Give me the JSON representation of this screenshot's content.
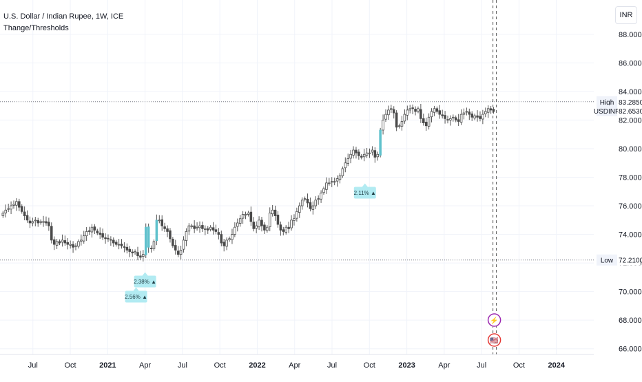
{
  "header": {
    "symbol_title": "U.S. Dollar / Indian Rupee, 1W, ICE",
    "indicator_title": "Thange/Thresholds"
  },
  "currency_button": "INR",
  "price_scale": {
    "ticks": [
      "66.0000",
      "68.0000",
      "70.0000",
      "72.0000",
      "74.0000",
      "76.0000",
      "78.0000",
      "80.0000",
      "82.0000",
      "84.0000",
      "86.0000",
      "88.0000"
    ]
  },
  "time_scale": {
    "ticks": [
      {
        "label": "Jul",
        "t": 2020.5,
        "bold": false
      },
      {
        "label": "Oct",
        "t": 2020.75,
        "bold": false
      },
      {
        "label": "2021",
        "t": 2021.0,
        "bold": true
      },
      {
        "label": "Apr",
        "t": 2021.25,
        "bold": false
      },
      {
        "label": "Jul",
        "t": 2021.5,
        "bold": false
      },
      {
        "label": "Oct",
        "t": 2021.75,
        "bold": false
      },
      {
        "label": "2022",
        "t": 2022.0,
        "bold": true
      },
      {
        "label": "Apr",
        "t": 2022.25,
        "bold": false
      },
      {
        "label": "Jul",
        "t": 2022.5,
        "bold": false
      },
      {
        "label": "Oct",
        "t": 2022.75,
        "bold": false
      },
      {
        "label": "2023",
        "t": 2023.0,
        "bold": true
      },
      {
        "label": "Apr",
        "t": 2023.25,
        "bold": false
      },
      {
        "label": "Jul",
        "t": 2023.5,
        "bold": false
      },
      {
        "label": "Oct",
        "t": 2023.75,
        "bold": false
      },
      {
        "label": "2024",
        "t": 2024.0,
        "bold": true
      }
    ]
  },
  "markers": {
    "high": {
      "label": "High",
      "value": "83.2850",
      "price": 83.285
    },
    "last": {
      "label": "USDINR",
      "value": "82.6530",
      "price": 82.653
    },
    "low": {
      "label": "Low",
      "value": "72.2100",
      "price": 72.21
    }
  },
  "annotations": [
    {
      "text": "2.56% ▲",
      "t": 2021.19
    },
    {
      "text": "2.38% ▲",
      "t": 2021.25
    },
    {
      "text": "2.11% ▲",
      "t": 2022.72
    }
  ],
  "event_icons": [
    {
      "name": "lightning-event-icon",
      "glyph": "⚡"
    },
    {
      "name": "us-flag-event-icon",
      "glyph": "🇺🇸"
    }
  ],
  "colors": {
    "up_body": "#ffffff",
    "down_body": "#4a4a4a",
    "wick": "#555555",
    "highlight": "#5fc1cc",
    "annotation_bg": "#b2ebf2",
    "grid": "#f0f3fa",
    "axis_text": "#131722",
    "event_purple": "#9c27b0",
    "event_red": "#e53935"
  },
  "chart_data": {
    "type": "candlestick",
    "title": "U.S. Dollar / Indian Rupee, 1W, ICE",
    "xlabel": "",
    "ylabel": "",
    "ylim": [
      65.6,
      90.4
    ],
    "xlim": [
      2020.28,
      2024.25
    ],
    "interval": "1W",
    "series": [
      {
        "name": "USDINR",
        "closes": [
          75.5,
          75.7,
          75.8,
          76.0,
          76.1,
          76.3,
          75.9,
          75.6,
          75.3,
          75.0,
          74.8,
          74.9,
          75.0,
          74.8,
          74.9,
          74.9,
          74.8,
          74.6,
          73.6,
          73.3,
          73.5,
          73.4,
          73.6,
          73.4,
          73.3,
          73.3,
          73.1,
          73.2,
          73.5,
          73.6,
          73.9,
          74.2,
          74.2,
          74.5,
          74.3,
          74.1,
          74.0,
          73.8,
          73.7,
          73.7,
          73.6,
          73.4,
          73.3,
          73.3,
          73.2,
          73.1,
          72.9,
          72.8,
          72.7,
          72.8,
          72.5,
          72.4,
          72.6,
          74.5,
          73.1,
          73.0,
          73.5,
          75.0,
          75.0,
          74.6,
          74.4,
          74.2,
          73.7,
          73.2,
          72.9,
          72.6,
          72.9,
          73.6,
          74.2,
          74.6,
          74.6,
          74.4,
          74.5,
          74.6,
          74.4,
          74.4,
          74.3,
          74.5,
          74.3,
          74.2,
          74.0,
          73.4,
          73.2,
          73.6,
          73.7,
          74.0,
          74.5,
          74.8,
          75.1,
          75.4,
          75.4,
          75.5,
          74.9,
          74.4,
          74.6,
          75.0,
          74.6,
          74.3,
          74.5,
          75.5,
          75.7,
          75.3,
          74.7,
          74.3,
          74.2,
          74.5,
          74.4,
          75.0,
          75.1,
          75.6,
          76.0,
          76.4,
          76.5,
          76.2,
          75.8,
          76.0,
          76.4,
          76.5,
          76.9,
          77.2,
          77.6,
          77.6,
          77.7,
          77.7,
          77.9,
          78.1,
          78.6,
          79.0,
          79.3,
          79.6,
          79.9,
          79.7,
          79.5,
          79.4,
          79.6,
          79.7,
          79.7,
          79.9,
          79.4,
          79.6,
          81.3,
          82.0,
          82.4,
          82.7,
          82.8,
          82.5,
          81.5,
          81.6,
          81.9,
          82.4,
          82.7,
          82.8,
          82.8,
          82.6,
          82.8,
          82.1,
          81.8,
          81.6,
          82.2,
          82.6,
          82.8,
          82.6,
          82.4,
          82.3,
          82.1,
          82.0,
          82.1,
          82.2,
          82.0,
          81.9,
          82.4,
          82.5,
          82.6,
          82.4,
          82.2,
          82.3,
          82.2,
          82.1,
          82.4,
          82.6,
          82.8,
          82.7,
          82.6
        ]
      }
    ],
    "high": 83.285,
    "low": 72.21,
    "last": 82.653
  }
}
